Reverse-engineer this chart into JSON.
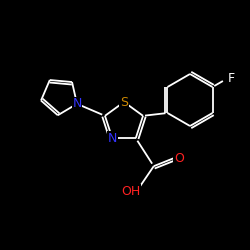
{
  "background_color": "#000000",
  "bond_color": "#ffffff",
  "atom_colors": {
    "N": "#3333ff",
    "S": "#cc8800",
    "O": "#ff2222",
    "F": "#ffffff",
    "C": "#ffffff"
  },
  "fig_width": 2.5,
  "fig_height": 2.5,
  "dpi": 100,
  "lw": 1.3
}
